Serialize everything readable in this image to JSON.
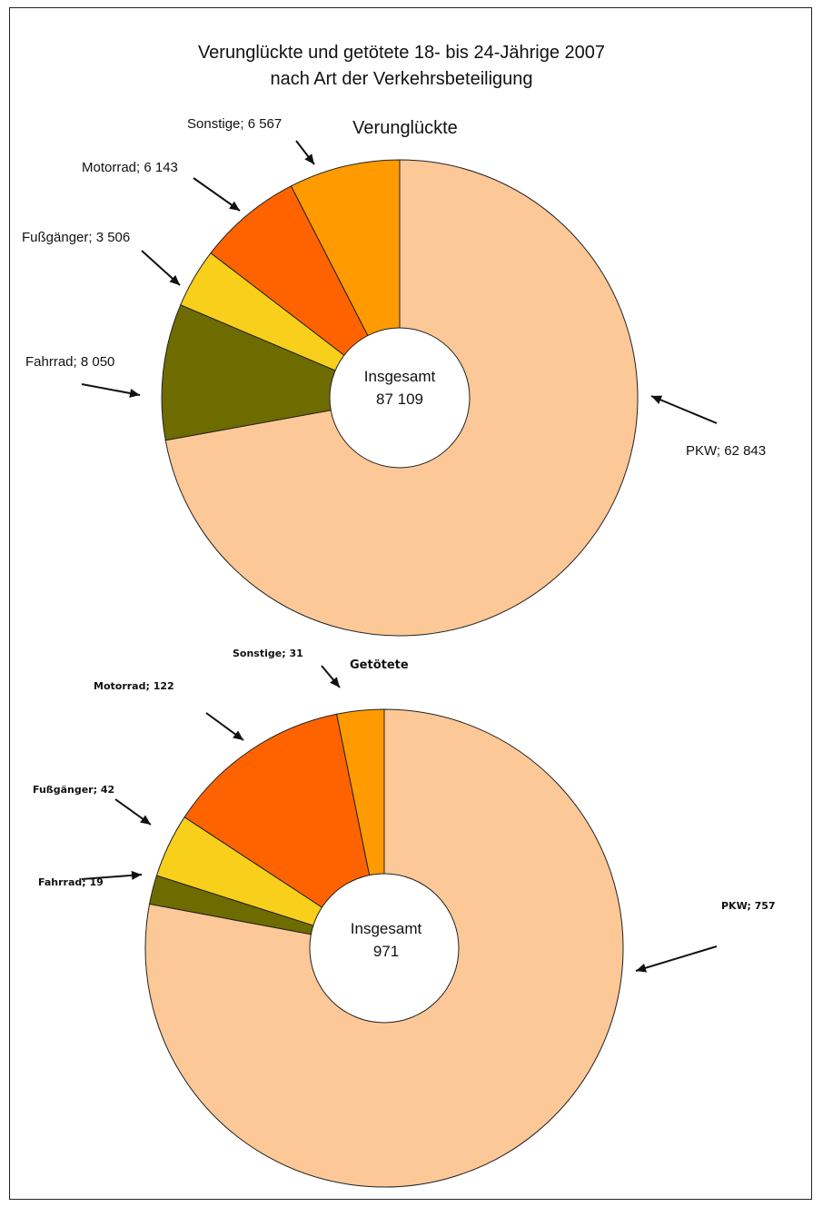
{
  "title_line1": "Verunglückte und getötete 18- bis 24-Jährige 2007",
  "title_line2": "nach Art der Verkehrsbeteiligung",
  "colors": {
    "PKW": "#fcc897",
    "Fahrrad": "#6e6c00",
    "Fußgänger": "#f8cf1a",
    "Motorrad": "#ff6300",
    "Sonstige": "#ff9a00"
  },
  "chart_data": [
    {
      "type": "pie",
      "subtitle": "Verunglückte",
      "center_label": "Insgesamt",
      "center_value": "87 109",
      "slices": [
        {
          "name": "PKW",
          "value": 62843,
          "label": "PKW; 62 843"
        },
        {
          "name": "Fahrrad",
          "value": 8050,
          "label": "Fahrrad; 8 050"
        },
        {
          "name": "Fußgänger",
          "value": 3506,
          "label": "Fußgänger; 3 506"
        },
        {
          "name": "Motorrad",
          "value": 6143,
          "label": "Motorrad; 6 143"
        },
        {
          "name": "Sonstige",
          "value": 6567,
          "label": "Sonstige; 6 567"
        }
      ]
    },
    {
      "type": "pie",
      "subtitle": "Getötete",
      "center_label": "Insgesamt",
      "center_value": "971",
      "slices": [
        {
          "name": "PKW",
          "value": 757,
          "label": "PKW; 757"
        },
        {
          "name": "Fahrrad",
          "value": 19,
          "label": "Fahrrad; 19"
        },
        {
          "name": "Fußgänger",
          "value": 42,
          "label": "Fußgänger; 42"
        },
        {
          "name": "Motorrad",
          "value": 122,
          "label": "Motorrad; 122"
        },
        {
          "name": "Sonstige",
          "value": 31,
          "label": "Sonstige; 31"
        }
      ]
    }
  ]
}
